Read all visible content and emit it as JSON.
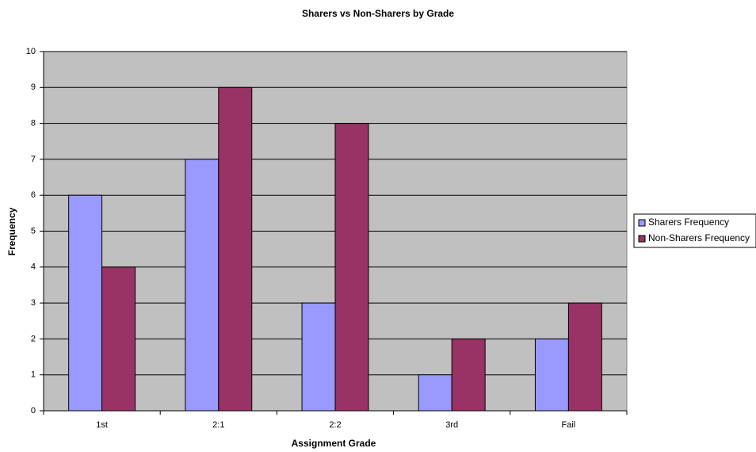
{
  "chart_data": {
    "type": "bar",
    "title": "Sharers vs Non-Sharers by Grade",
    "xlabel": "Assignment Grade",
    "ylabel": "Frequency",
    "categories": [
      "1st",
      "2:1",
      "2:2",
      "3rd",
      "Fail"
    ],
    "series": [
      {
        "name": "Sharers Frequency",
        "color": "#9999ff",
        "values": [
          6,
          7,
          3,
          1,
          2
        ]
      },
      {
        "name": "Non-Sharers Frequency",
        "color": "#993366",
        "values": [
          4,
          9,
          8,
          2,
          3
        ]
      }
    ],
    "ylim": [
      0,
      10
    ],
    "yticks": [
      0,
      1,
      2,
      3,
      4,
      5,
      6,
      7,
      8,
      9,
      10
    ],
    "grid": true,
    "legend": "right"
  }
}
